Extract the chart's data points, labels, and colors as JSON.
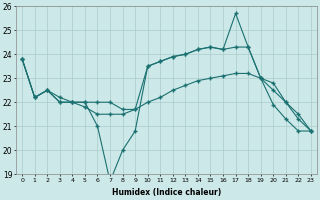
{
  "xlabel": "Humidex (Indice chaleur)",
  "background_color": "#cde8e8",
  "grid_color": "#aacccc",
  "line_color": "#1a7070",
  "x": [
    0,
    1,
    2,
    3,
    4,
    5,
    6,
    7,
    8,
    9,
    10,
    11,
    12,
    13,
    14,
    15,
    16,
    17,
    18,
    19,
    20,
    21,
    22,
    23
  ],
  "y_max": [
    23.8,
    22.2,
    22.5,
    22.0,
    22.0,
    22.0,
    21.0,
    18.7,
    20.0,
    20.8,
    23.5,
    23.7,
    23.9,
    24.0,
    24.2,
    24.3,
    24.2,
    25.7,
    24.3,
    23.0,
    21.9,
    21.3,
    20.8,
    20.8
  ],
  "y_mid": [
    23.8,
    22.2,
    22.5,
    22.2,
    22.0,
    22.0,
    22.0,
    22.0,
    21.7,
    21.7,
    23.5,
    23.7,
    23.9,
    24.0,
    24.2,
    24.3,
    24.2,
    24.3,
    24.3,
    23.0,
    22.5,
    22.0,
    21.3,
    20.8
  ],
  "y_min": [
    23.8,
    22.2,
    22.5,
    22.0,
    22.0,
    21.8,
    21.5,
    21.5,
    21.5,
    21.7,
    22.0,
    22.2,
    22.5,
    22.7,
    22.9,
    23.0,
    23.1,
    23.2,
    23.2,
    23.0,
    22.8,
    22.0,
    21.5,
    20.8
  ],
  "ylim": [
    19,
    26
  ],
  "xlim": [
    -0.5,
    23.5
  ],
  "yticks": [
    19,
    20,
    21,
    22,
    23,
    24,
    25,
    26
  ],
  "xticks": [
    0,
    1,
    2,
    3,
    4,
    5,
    6,
    7,
    8,
    9,
    10,
    11,
    12,
    13,
    14,
    15,
    16,
    17,
    18,
    19,
    20,
    21,
    22,
    23
  ]
}
